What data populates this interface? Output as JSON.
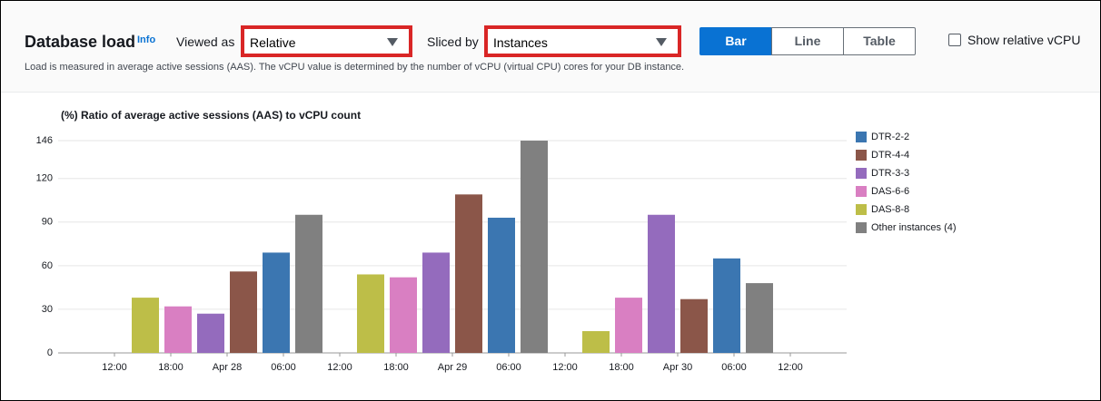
{
  "header": {
    "title": "Database load",
    "info": "Info",
    "viewed_as_label": "Viewed as",
    "viewed_as_value": "Relative",
    "sliced_by_label": "Sliced by",
    "sliced_by_value": "Instances",
    "buttons": [
      "Bar",
      "Line",
      "Table"
    ],
    "checkbox_label": "Show relative vCPU",
    "description": "Load is measured in average active sessions (AAS). The vCPU value is determined by the number of vCPU (virtual CPU) cores for your DB instance."
  },
  "chart_data": {
    "type": "bar",
    "title": "(%) Ratio of average active sessions (AAS) to vCPU count",
    "x": [
      0,
      24,
      48
    ],
    "xlim": [
      -18,
      66
    ],
    "xticks": [
      {
        "value": -12,
        "label": "12:00"
      },
      {
        "value": -6,
        "label": "18:00"
      },
      {
        "value": 0,
        "label": "Apr 28"
      },
      {
        "value": 6,
        "label": "06:00"
      },
      {
        "value": 12,
        "label": "12:00"
      },
      {
        "value": 18,
        "label": "18:00"
      },
      {
        "value": 24,
        "label": "Apr 29"
      },
      {
        "value": 30,
        "label": "06:00"
      },
      {
        "value": 36,
        "label": "12:00"
      },
      {
        "value": 42,
        "label": "18:00"
      },
      {
        "value": 48,
        "label": "Apr 30"
      },
      {
        "value": 54,
        "label": "06:00"
      },
      {
        "value": 60,
        "label": "12:00"
      }
    ],
    "ylim": [
      0,
      155
    ],
    "yticks": [
      0,
      30,
      60,
      90,
      120,
      146
    ],
    "grid": true,
    "legend": "right",
    "series": [
      {
        "name": "DTR-2-2",
        "color": "#3b76b1",
        "values": [
          69,
          93,
          65
        ]
      },
      {
        "name": "DTR-4-4",
        "color": "#8b5649",
        "values": [
          56,
          109,
          37
        ]
      },
      {
        "name": "DTR-3-3",
        "color": "#946bbd",
        "values": [
          27,
          69,
          95
        ]
      },
      {
        "name": "DAS-6-6",
        "color": "#d97fc2",
        "values": [
          32,
          52,
          38
        ]
      },
      {
        "name": "DAS-8-8",
        "color": "#bdbe48",
        "values": [
          38,
          54,
          15
        ]
      },
      {
        "name": "Other instances (4)",
        "color": "#808080",
        "values": [
          95,
          146,
          48
        ]
      }
    ]
  }
}
